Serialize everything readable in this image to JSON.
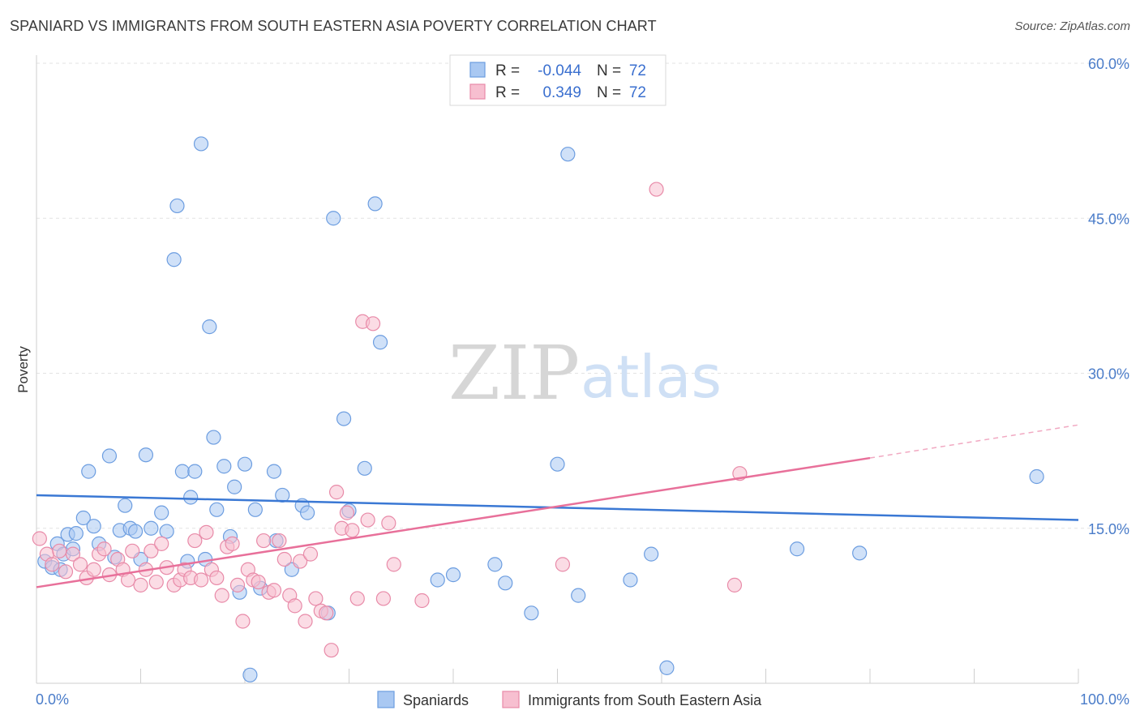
{
  "title": "SPANIARD VS IMMIGRANTS FROM SOUTH EASTERN ASIA POVERTY CORRELATION CHART",
  "source": "Source: ZipAtlas.com",
  "watermark": {
    "zip": "ZIP",
    "atlas": "atlas"
  },
  "legend": {
    "rows": [
      {
        "r_label": "R =",
        "r_value": "-0.044",
        "n_label": "N =",
        "n_value": "72",
        "color": "#a9c8f2",
        "stroke": "#6c9de0"
      },
      {
        "r_label": "R =",
        "r_value": "0.349",
        "n_label": "N =",
        "n_value": "72",
        "color": "#f7bfd0",
        "stroke": "#e88aa8"
      }
    ]
  },
  "bottom_legend": [
    {
      "label": "Spaniards",
      "color": "#a9c8f2",
      "stroke": "#6c9de0"
    },
    {
      "label": "Immigrants from South Eastern Asia",
      "color": "#f7bfd0",
      "stroke": "#e88aa8"
    }
  ],
  "chart_data": {
    "type": "scatter",
    "title": "SPANIARD VS IMMIGRANTS FROM SOUTH EASTERN ASIA POVERTY CORRELATION CHART",
    "xlabel": "",
    "ylabel": "Poverty",
    "xlim": [
      0,
      100
    ],
    "ylim": [
      0,
      60
    ],
    "x_tick_labels": [
      "0.0%",
      "100.0%"
    ],
    "y_ticks": [
      15,
      30,
      45,
      60
    ],
    "y_tick_labels": [
      "15.0%",
      "30.0%",
      "45.0%",
      "60.0%"
    ],
    "grid": true,
    "series": [
      {
        "name": "Spaniards",
        "color": "#6c9de0",
        "fill": "#a9c8f2",
        "trend": {
          "x": [
            0,
            100
          ],
          "y": [
            18.2,
            15.8
          ],
          "color": "#3a78d4"
        },
        "points": [
          [
            0.8,
            11.8
          ],
          [
            1.5,
            11.2
          ],
          [
            2.0,
            13.5
          ],
          [
            2.3,
            11.0
          ],
          [
            2.6,
            12.5
          ],
          [
            3.0,
            14.4
          ],
          [
            3.5,
            13.0
          ],
          [
            3.8,
            14.5
          ],
          [
            4.5,
            16.0
          ],
          [
            5.0,
            20.5
          ],
          [
            5.5,
            15.2
          ],
          [
            6.0,
            13.5
          ],
          [
            7.0,
            22.0
          ],
          [
            7.5,
            12.2
          ],
          [
            8.0,
            14.8
          ],
          [
            8.5,
            17.2
          ],
          [
            9.0,
            15.0
          ],
          [
            9.5,
            14.7
          ],
          [
            10.0,
            12.0
          ],
          [
            10.5,
            22.1
          ],
          [
            11.0,
            15.0
          ],
          [
            12.0,
            16.5
          ],
          [
            12.5,
            14.7
          ],
          [
            13.2,
            41.0
          ],
          [
            13.5,
            46.2
          ],
          [
            14.0,
            20.5
          ],
          [
            14.5,
            11.8
          ],
          [
            14.8,
            18.0
          ],
          [
            15.2,
            20.5
          ],
          [
            15.8,
            52.2
          ],
          [
            16.2,
            12.0
          ],
          [
            16.6,
            34.5
          ],
          [
            17.0,
            23.8
          ],
          [
            17.3,
            16.8
          ],
          [
            18.0,
            21.0
          ],
          [
            18.6,
            14.2
          ],
          [
            19.0,
            19.0
          ],
          [
            19.5,
            8.8
          ],
          [
            20.0,
            21.2
          ],
          [
            20.5,
            0.8
          ],
          [
            21.0,
            16.8
          ],
          [
            21.5,
            9.2
          ],
          [
            22.8,
            20.5
          ],
          [
            23.0,
            13.8
          ],
          [
            23.6,
            18.2
          ],
          [
            24.5,
            11.0
          ],
          [
            25.5,
            17.2
          ],
          [
            26.0,
            16.5
          ],
          [
            28.0,
            6.8
          ],
          [
            28.5,
            45.0
          ],
          [
            29.5,
            25.6
          ],
          [
            30.0,
            16.7
          ],
          [
            31.5,
            20.8
          ],
          [
            32.5,
            46.4
          ],
          [
            33.0,
            33.0
          ],
          [
            38.5,
            10.0
          ],
          [
            40.0,
            10.5
          ],
          [
            44.0,
            11.5
          ],
          [
            45.0,
            9.7
          ],
          [
            47.5,
            6.8
          ],
          [
            50.0,
            21.2
          ],
          [
            51.0,
            51.2
          ],
          [
            52.0,
            8.5
          ],
          [
            57.0,
            10.0
          ],
          [
            59.0,
            12.5
          ],
          [
            60.5,
            1.5
          ],
          [
            73.0,
            13.0
          ],
          [
            79.0,
            12.6
          ],
          [
            96.0,
            20.0
          ]
        ]
      },
      {
        "name": "Immigrants from South Eastern Asia",
        "color": "#e88aa8",
        "fill": "#f7bfd0",
        "trend": {
          "x": [
            0,
            80
          ],
          "y": [
            9.3,
            21.8
          ],
          "dashed_to": [
            100,
            25.0
          ],
          "color": "#e8709a"
        },
        "points": [
          [
            0.3,
            14.0
          ],
          [
            1.0,
            12.5
          ],
          [
            1.5,
            11.5
          ],
          [
            2.2,
            12.8
          ],
          [
            2.8,
            10.8
          ],
          [
            3.5,
            12.5
          ],
          [
            4.2,
            11.5
          ],
          [
            4.8,
            10.2
          ],
          [
            5.5,
            11.0
          ],
          [
            6.0,
            12.5
          ],
          [
            6.5,
            13.0
          ],
          [
            7.0,
            10.5
          ],
          [
            7.8,
            12.0
          ],
          [
            8.3,
            11.0
          ],
          [
            8.8,
            10.0
          ],
          [
            9.2,
            12.8
          ],
          [
            10.0,
            9.5
          ],
          [
            10.5,
            11.0
          ],
          [
            11.0,
            12.8
          ],
          [
            11.5,
            9.8
          ],
          [
            12.0,
            13.5
          ],
          [
            12.5,
            11.2
          ],
          [
            13.2,
            9.5
          ],
          [
            13.8,
            10.0
          ],
          [
            14.2,
            11.0
          ],
          [
            14.8,
            10.2
          ],
          [
            15.2,
            13.8
          ],
          [
            15.8,
            10.0
          ],
          [
            16.3,
            14.6
          ],
          [
            16.8,
            11.0
          ],
          [
            17.3,
            10.2
          ],
          [
            17.8,
            8.5
          ],
          [
            18.3,
            13.2
          ],
          [
            18.8,
            13.5
          ],
          [
            19.3,
            9.5
          ],
          [
            19.8,
            6.0
          ],
          [
            20.3,
            11.0
          ],
          [
            20.8,
            10.0
          ],
          [
            21.3,
            9.8
          ],
          [
            21.8,
            13.8
          ],
          [
            22.3,
            8.8
          ],
          [
            22.8,
            9.0
          ],
          [
            23.3,
            13.8
          ],
          [
            23.8,
            12.0
          ],
          [
            24.3,
            8.5
          ],
          [
            24.8,
            7.5
          ],
          [
            25.3,
            11.8
          ],
          [
            25.8,
            6.0
          ],
          [
            26.3,
            12.5
          ],
          [
            26.8,
            8.2
          ],
          [
            27.3,
            7.0
          ],
          [
            27.8,
            6.8
          ],
          [
            28.3,
            3.2
          ],
          [
            28.8,
            18.5
          ],
          [
            29.3,
            15.0
          ],
          [
            29.8,
            16.5
          ],
          [
            30.3,
            14.8
          ],
          [
            30.8,
            8.2
          ],
          [
            31.3,
            35.0
          ],
          [
            31.8,
            15.8
          ],
          [
            32.3,
            34.8
          ],
          [
            33.3,
            8.2
          ],
          [
            33.8,
            15.5
          ],
          [
            34.3,
            11.5
          ],
          [
            37.0,
            8.0
          ],
          [
            50.5,
            11.5
          ],
          [
            59.5,
            47.8
          ],
          [
            67.0,
            9.5
          ],
          [
            67.5,
            20.3
          ]
        ]
      }
    ]
  }
}
